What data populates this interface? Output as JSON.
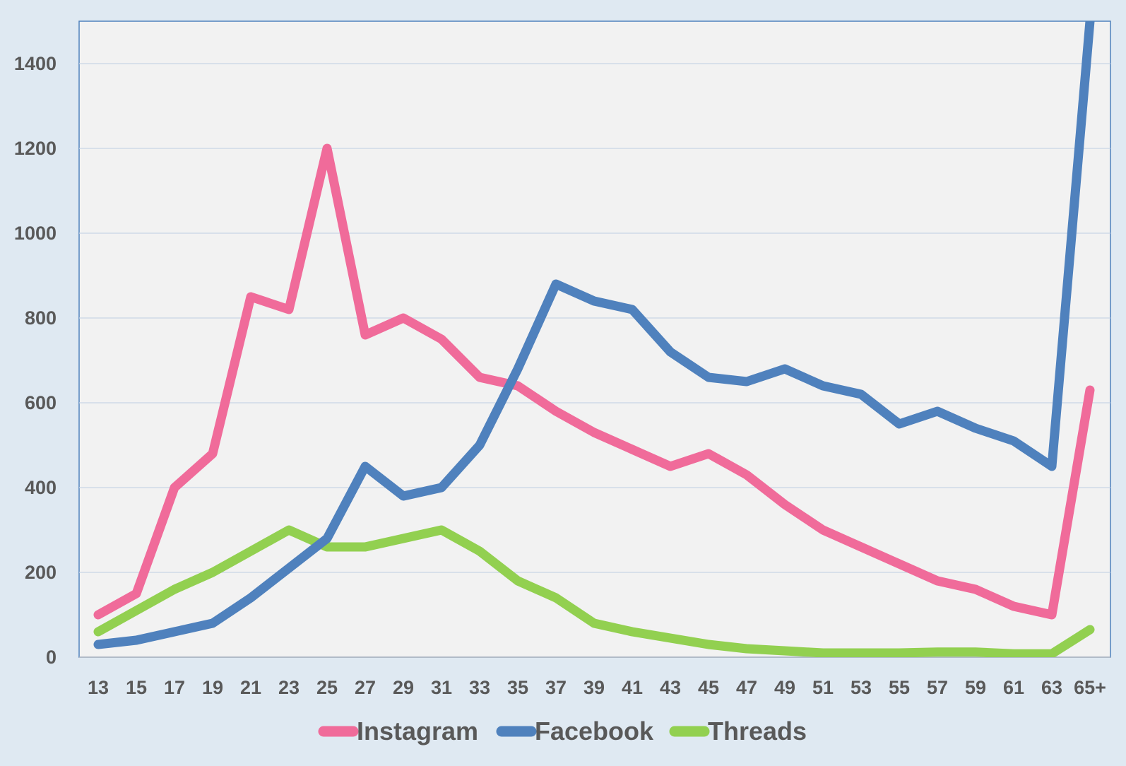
{
  "chart_data": {
    "type": "line",
    "title": "",
    "xlabel": "",
    "ylabel": "",
    "categories": [
      "13",
      "15",
      "17",
      "19",
      "21",
      "23",
      "25",
      "27",
      "29",
      "31",
      "33",
      "35",
      "37",
      "39",
      "41",
      "43",
      "45",
      "47",
      "49",
      "51",
      "53",
      "55",
      "57",
      "59",
      "61",
      "63",
      "65+"
    ],
    "ylim": [
      0,
      1500
    ],
    "yticks": [
      0,
      200,
      400,
      600,
      800,
      1000,
      1200,
      1400
    ],
    "grid": true,
    "legend_position": "bottom",
    "series": [
      {
        "name": "Instagram",
        "color": "#f06b9a",
        "values": [
          100,
          150,
          400,
          480,
          850,
          820,
          1200,
          760,
          800,
          750,
          660,
          640,
          580,
          530,
          490,
          450,
          480,
          430,
          360,
          300,
          260,
          220,
          180,
          160,
          120,
          100,
          630
        ]
      },
      {
        "name": "Facebook",
        "color": "#4f81bd",
        "values": [
          30,
          40,
          60,
          80,
          140,
          210,
          280,
          450,
          380,
          400,
          500,
          680,
          880,
          840,
          820,
          720,
          660,
          650,
          680,
          640,
          620,
          550,
          580,
          540,
          510,
          450,
          1500
        ]
      },
      {
        "name": "Threads",
        "color": "#92d050",
        "values": [
          60,
          110,
          160,
          200,
          250,
          300,
          260,
          260,
          280,
          300,
          250,
          180,
          140,
          80,
          60,
          45,
          30,
          20,
          15,
          10,
          10,
          10,
          12,
          12,
          8,
          8,
          65
        ]
      }
    ]
  }
}
